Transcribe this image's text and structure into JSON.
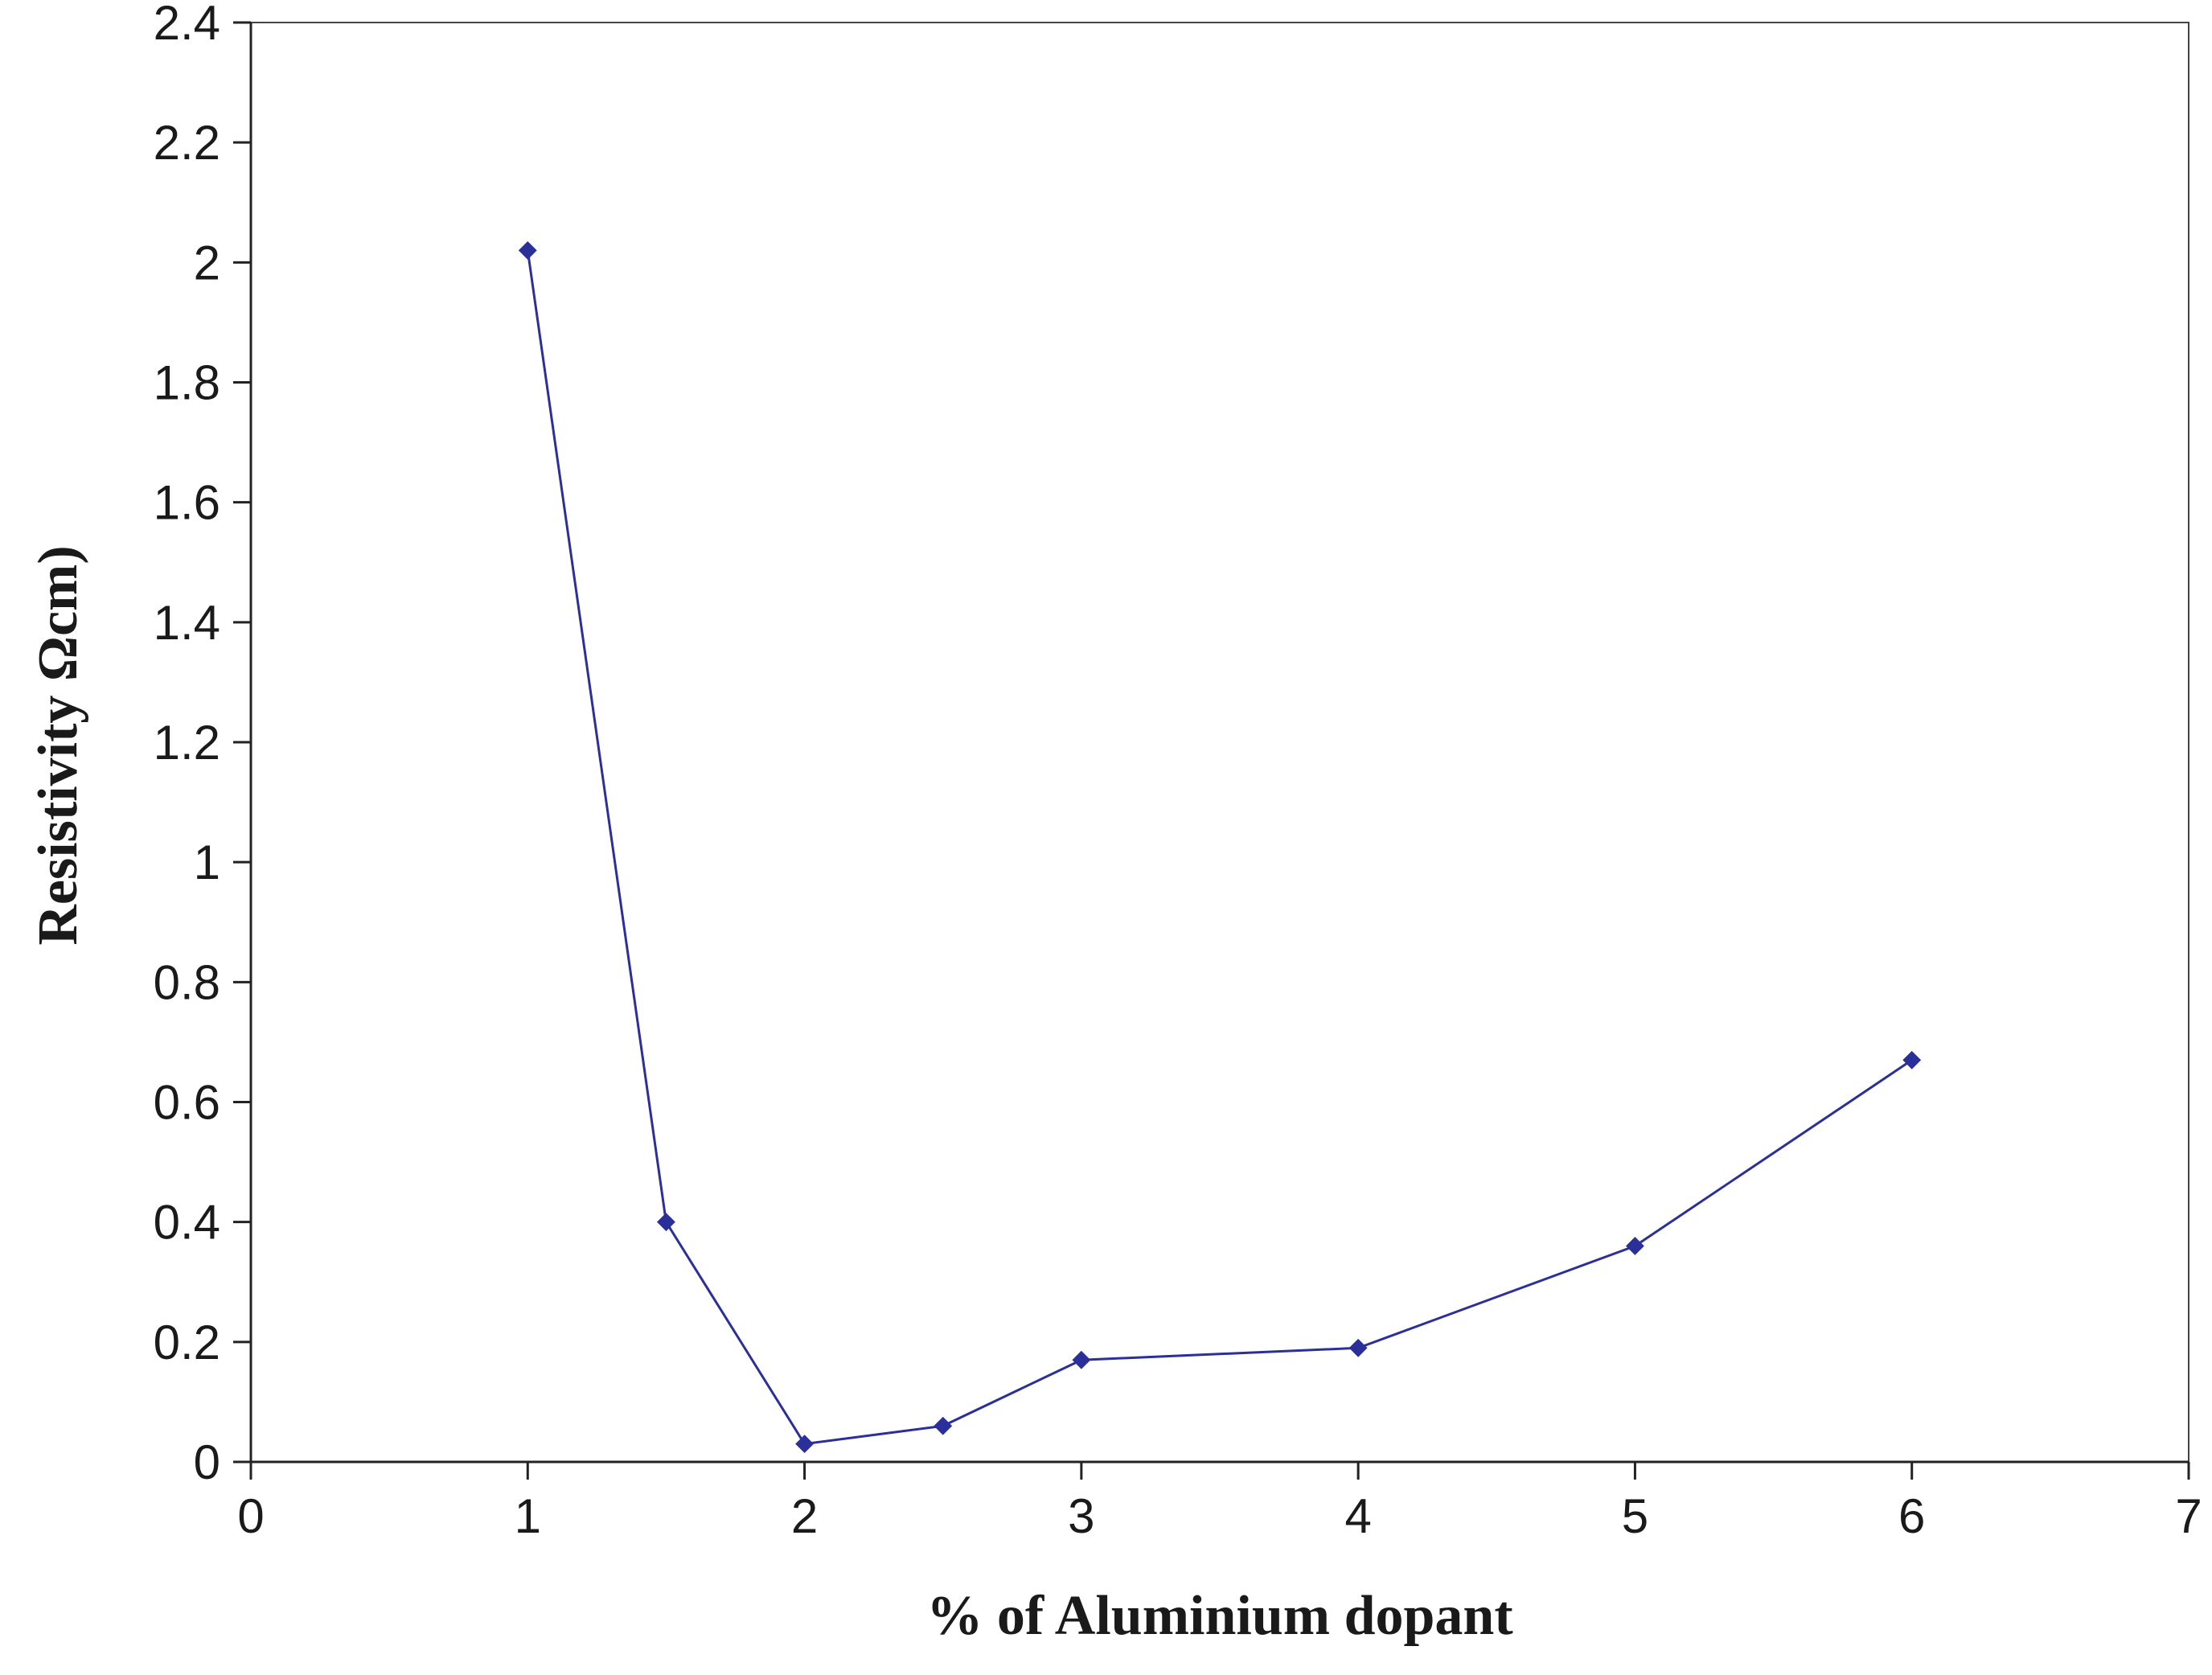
{
  "chart_data": {
    "type": "line",
    "title": "",
    "xlabel": "% of Aluminium dopant",
    "ylabel": "Resistivity  Ωcm)",
    "xlim": [
      0,
      7
    ],
    "ylim": [
      0,
      2.4
    ],
    "xticks": [
      "0",
      "1",
      "2",
      "3",
      "4",
      "5",
      "6",
      "7"
    ],
    "yticks": [
      "0",
      "0.2",
      "0.4",
      "0.6",
      "0.8",
      "1",
      "1.2",
      "1.4",
      "1.6",
      "1.8",
      "2",
      "2.2",
      "2.4"
    ],
    "grid": false,
    "legend": "none",
    "series": [
      {
        "color": "#2b2f99",
        "marker": "diamond",
        "x": [
          1,
          1.5,
          2,
          2.5,
          3,
          4,
          5,
          6
        ],
        "y": [
          2.02,
          0.4,
          0.03,
          0.06,
          0.17,
          0.19,
          0.36,
          0.67
        ]
      }
    ]
  }
}
